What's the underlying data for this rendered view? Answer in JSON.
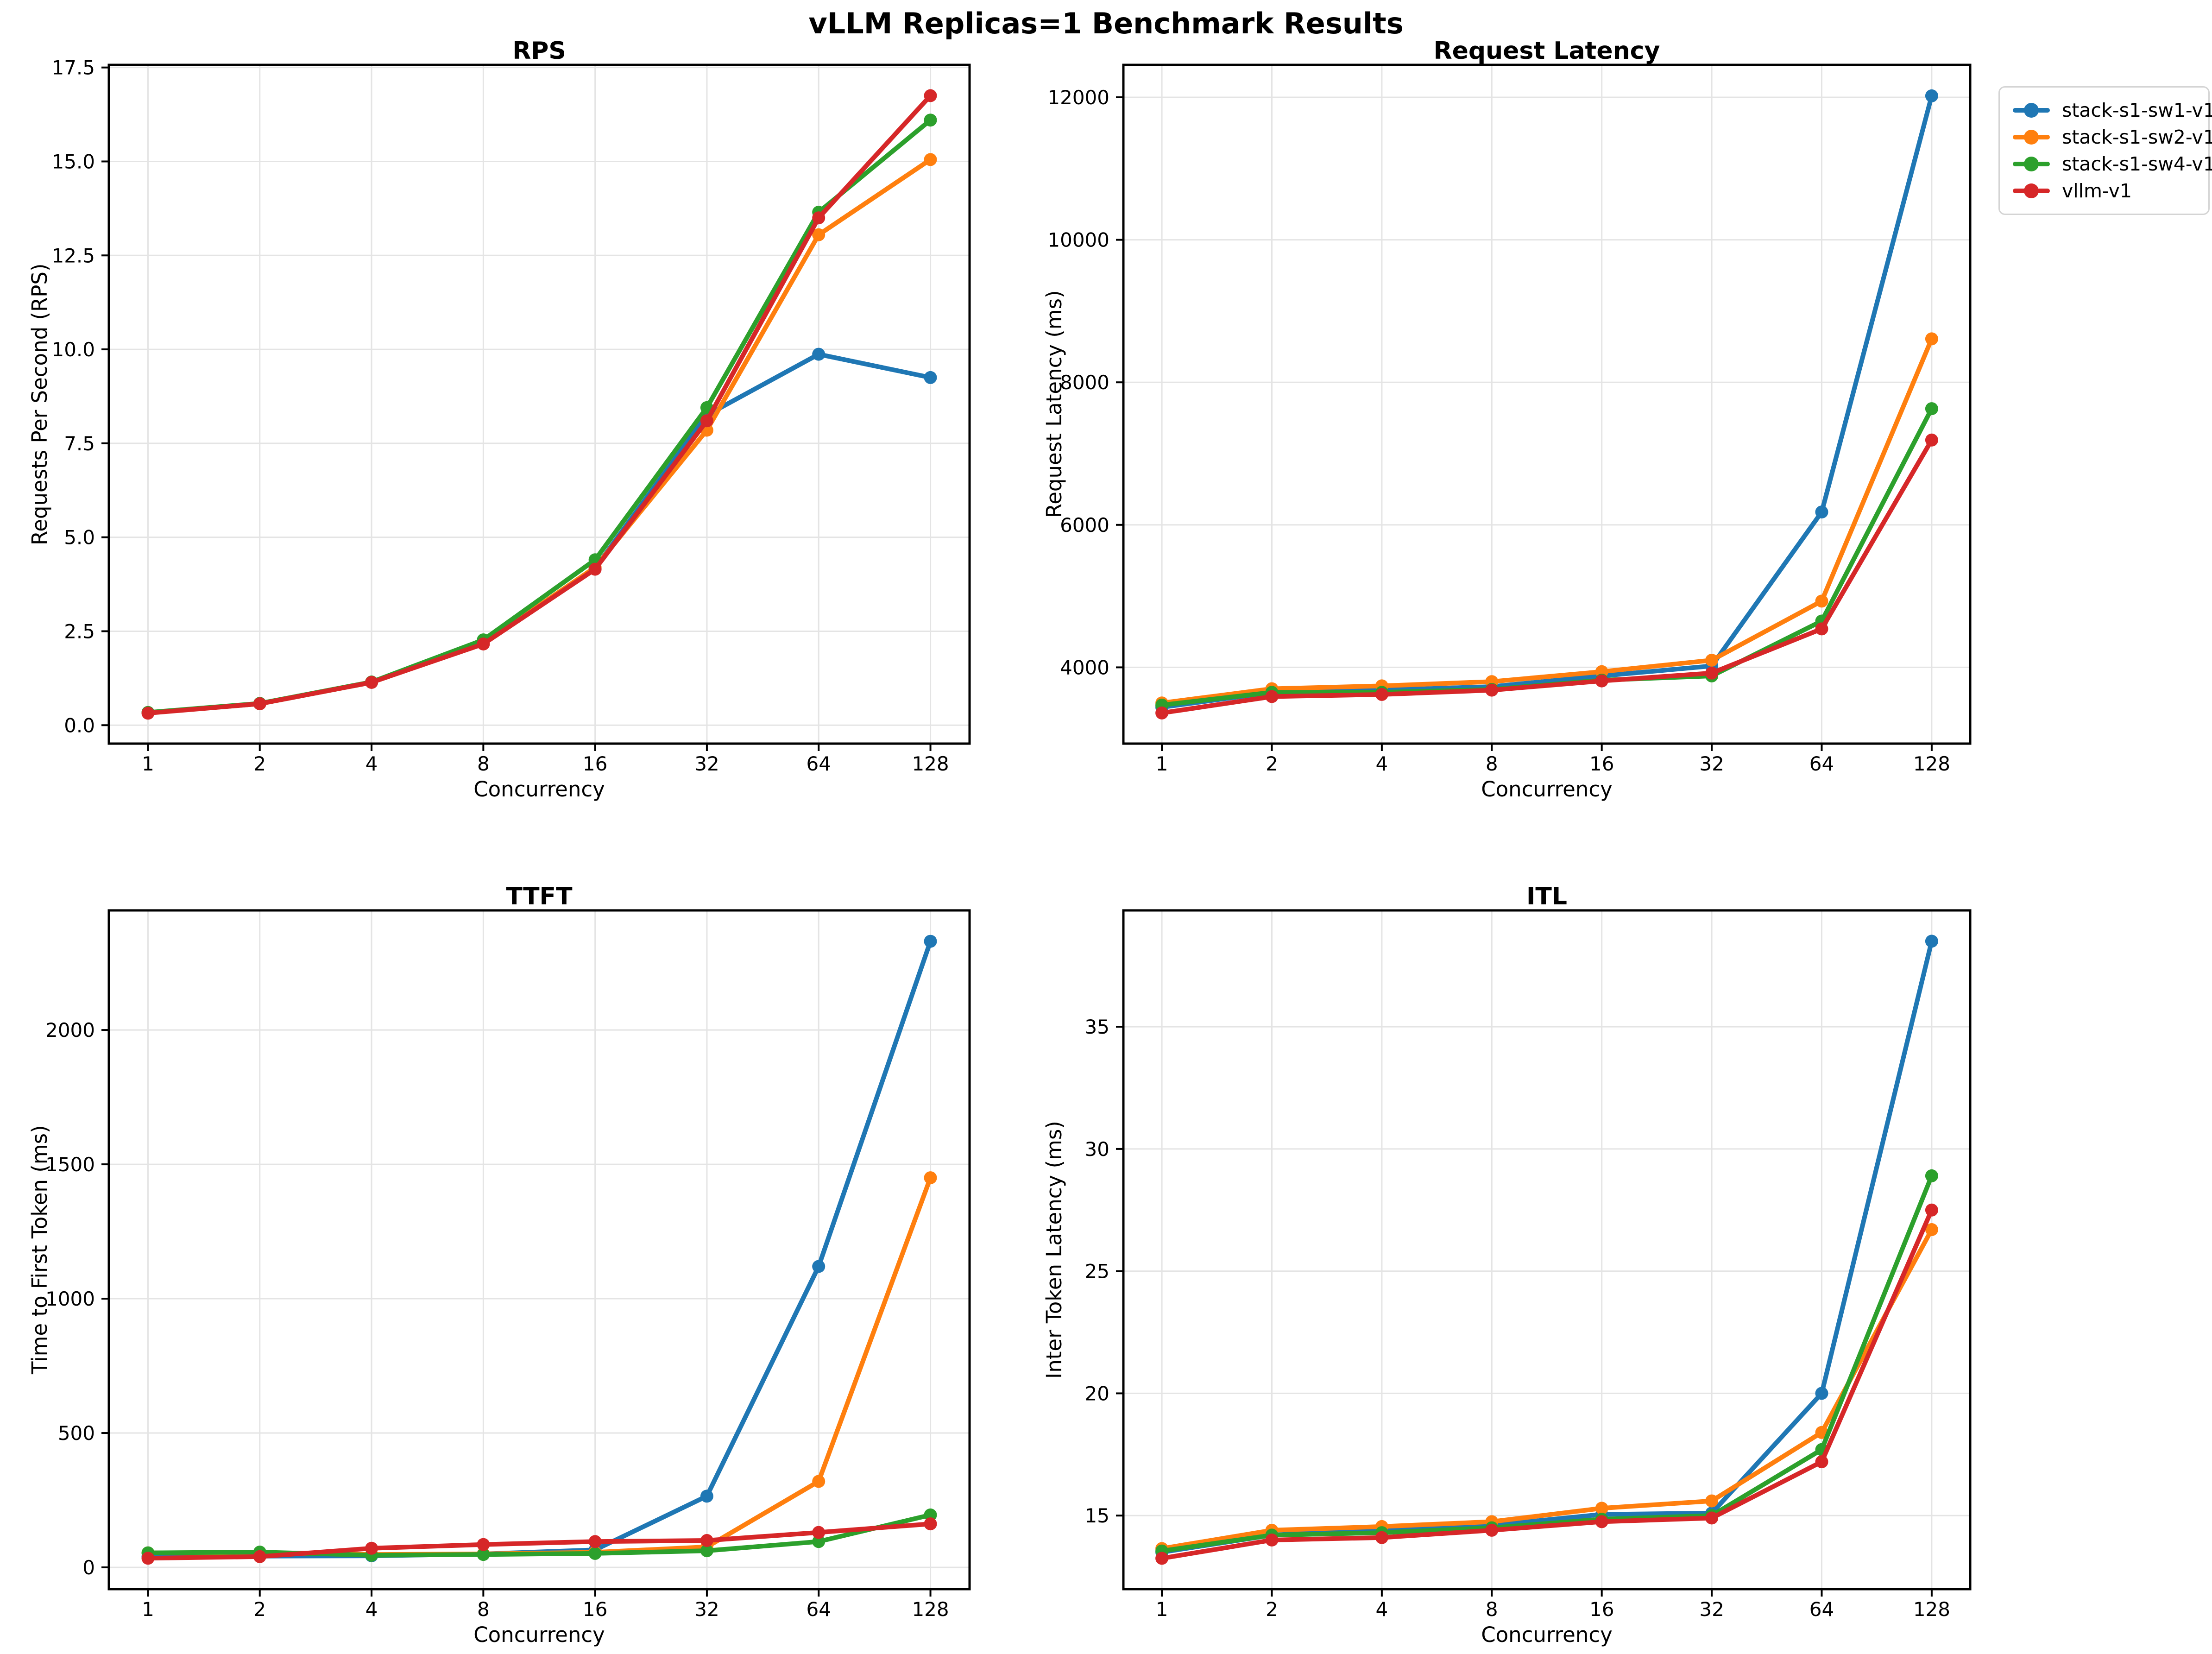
{
  "figure": {
    "title": "vLLM Replicas=1 Benchmark Results",
    "background": "#ffffff"
  },
  "legend": {
    "items": [
      {
        "label": "stack-s1-sw1-v1",
        "color": "#1f77b4"
      },
      {
        "label": "stack-s1-sw2-v1",
        "color": "#ff7f0e"
      },
      {
        "label": "stack-s1-sw4-v1",
        "color": "#2ca02c"
      },
      {
        "label": "vllm-v1",
        "color": "#d62728"
      }
    ]
  },
  "chart_data": [
    {
      "type": "line",
      "title": "RPS",
      "xlabel": "Concurrency",
      "ylabel": "Requests Per Second (RPS)",
      "categories": [
        "1",
        "2",
        "4",
        "8",
        "16",
        "32",
        "64",
        "128"
      ],
      "ylim": [
        -0.49,
        17.57
      ],
      "grid": true,
      "yticks": [
        {
          "v": 0.0,
          "label": "0.0"
        },
        {
          "v": 2.5,
          "label": "2.5"
        },
        {
          "v": 5.0,
          "label": "5.0"
        },
        {
          "v": 7.5,
          "label": "7.5"
        },
        {
          "v": 10.0,
          "label": "10.0"
        },
        {
          "v": 12.5,
          "label": "12.5"
        },
        {
          "v": 15.0,
          "label": "15.0"
        },
        {
          "v": 17.5,
          "label": "17.5"
        }
      ],
      "series": [
        {
          "name": "stack-s1-sw1-v1",
          "values": [
            0.33,
            0.57,
            1.14,
            2.17,
            4.18,
            8.25,
            9.87,
            9.25
          ]
        },
        {
          "name": "stack-s1-sw2-v1",
          "values": [
            0.33,
            0.57,
            1.14,
            2.17,
            4.2,
            7.85,
            13.05,
            15.05
          ]
        },
        {
          "name": "stack-s1-sw4-v1",
          "values": [
            0.34,
            0.58,
            1.15,
            2.27,
            4.4,
            8.45,
            13.65,
            16.1
          ]
        },
        {
          "name": "vllm-v1",
          "values": [
            0.32,
            0.57,
            1.14,
            2.16,
            4.15,
            8.1,
            13.5,
            16.75
          ]
        }
      ]
    },
    {
      "type": "line",
      "title": "Request Latency",
      "xlabel": "Concurrency",
      "ylabel": "Request Latency (ms)",
      "categories": [
        "1",
        "2",
        "4",
        "8",
        "16",
        "32",
        "64",
        "128"
      ],
      "ylim": [
        2930,
        12455
      ],
      "grid": true,
      "yticks": [
        {
          "v": 4000,
          "label": "4000"
        },
        {
          "v": 6000,
          "label": "6000"
        },
        {
          "v": 8000,
          "label": "8000"
        },
        {
          "v": 10000,
          "label": "10000"
        },
        {
          "v": 12000,
          "label": "12000"
        }
      ],
      "series": [
        {
          "name": "stack-s1-sw1-v1",
          "values": [
            3440,
            3650,
            3680,
            3730,
            3880,
            4020,
            6180,
            12020
          ]
        },
        {
          "name": "stack-s1-sw2-v1",
          "values": [
            3500,
            3700,
            3740,
            3800,
            3940,
            4100,
            4930,
            8610
          ]
        },
        {
          "name": "stack-s1-sw4-v1",
          "values": [
            3470,
            3650,
            3650,
            3690,
            3820,
            3880,
            4650,
            7630
          ]
        },
        {
          "name": "vllm-v1",
          "values": [
            3360,
            3590,
            3620,
            3680,
            3810,
            3920,
            4540,
            7190
          ]
        }
      ]
    },
    {
      "type": "line",
      "title": "TTFT",
      "xlabel": "Concurrency",
      "ylabel": "Time to First Token (ms)",
      "categories": [
        "1",
        "2",
        "4",
        "8",
        "16",
        "32",
        "64",
        "128"
      ],
      "ylim": [
        -81,
        2445
      ],
      "grid": true,
      "yticks": [
        {
          "v": 0,
          "label": "0"
        },
        {
          "v": 500,
          "label": "500"
        },
        {
          "v": 1000,
          "label": "1000"
        },
        {
          "v": 1500,
          "label": "1500"
        },
        {
          "v": 2000,
          "label": "2000"
        }
      ],
      "series": [
        {
          "name": "stack-s1-sw1-v1",
          "values": [
            40,
            42,
            43,
            50,
            65,
            265,
            1120,
            2330
          ]
        },
        {
          "name": "stack-s1-sw2-v1",
          "values": [
            54,
            55,
            48,
            50,
            56,
            76,
            320,
            1450
          ]
        },
        {
          "name": "stack-s1-sw4-v1",
          "values": [
            54,
            57,
            45,
            48,
            52,
            62,
            96,
            195
          ]
        },
        {
          "name": "vllm-v1",
          "values": [
            34,
            40,
            71,
            85,
            96,
            100,
            130,
            162
          ]
        }
      ]
    },
    {
      "type": "line",
      "title": "ITL",
      "xlabel": "Concurrency",
      "ylabel": "Inter Token Latency (ms)",
      "categories": [
        "1",
        "2",
        "4",
        "8",
        "16",
        "32",
        "64",
        "128"
      ],
      "ylim": [
        11.99,
        39.76
      ],
      "grid": true,
      "yticks": [
        {
          "v": 15,
          "label": "15"
        },
        {
          "v": 20,
          "label": "20"
        },
        {
          "v": 25,
          "label": "25"
        },
        {
          "v": 30,
          "label": "30"
        },
        {
          "v": 35,
          "label": "35"
        }
      ],
      "series": [
        {
          "name": "stack-s1-sw1-v1",
          "values": [
            13.5,
            14.2,
            14.45,
            14.6,
            15.05,
            15.1,
            20.0,
            38.5
          ]
        },
        {
          "name": "stack-s1-sw2-v1",
          "values": [
            13.65,
            14.4,
            14.55,
            14.75,
            15.3,
            15.6,
            18.4,
            26.7
          ]
        },
        {
          "name": "stack-s1-sw4-v1",
          "values": [
            13.55,
            14.2,
            14.3,
            14.5,
            14.85,
            15.0,
            17.7,
            28.9
          ]
        },
        {
          "name": "vllm-v1",
          "values": [
            13.25,
            14.0,
            14.1,
            14.4,
            14.75,
            14.9,
            17.2,
            27.5
          ]
        }
      ]
    }
  ]
}
